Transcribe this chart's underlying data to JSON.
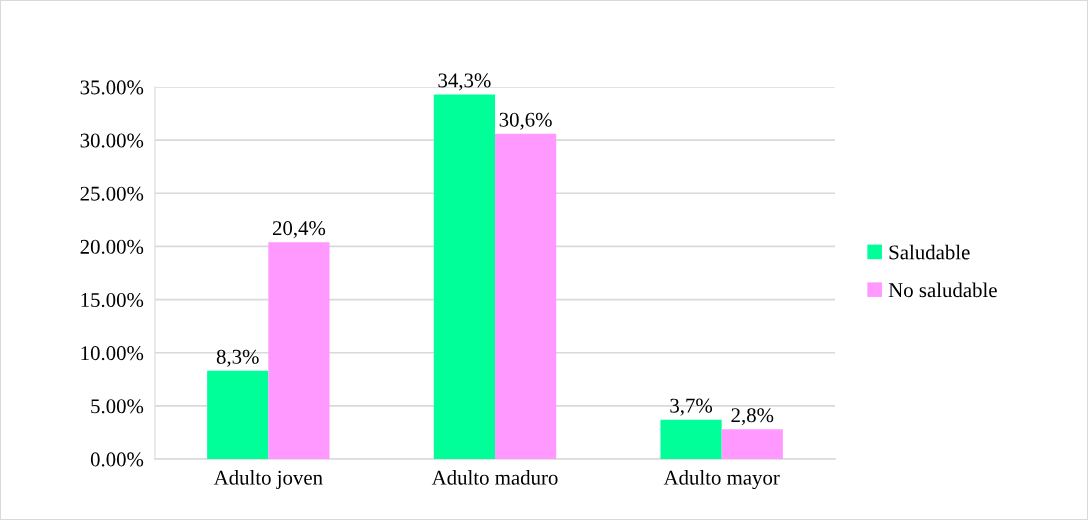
{
  "chart_data": {
    "type": "bar",
    "categories": [
      "Adulto joven",
      "Adulto maduro",
      "Adulto mayor"
    ],
    "series": [
      {
        "name": "Saludable",
        "color": "#00ff99",
        "values": [
          8.3,
          34.3,
          3.7
        ],
        "value_labels": [
          "8,3%",
          "34,3%",
          "3,7%"
        ]
      },
      {
        "name": "No saludable",
        "color": "#ff99ff",
        "values": [
          20.4,
          30.6,
          2.8
        ],
        "value_labels": [
          "20,4%",
          "30,6%",
          "2,8%"
        ]
      }
    ],
    "ylim": [
      0,
      35
    ],
    "yticks": [
      {
        "value": 0,
        "label": "0.00%"
      },
      {
        "value": 5,
        "label": "5.00%"
      },
      {
        "value": 10,
        "label": "10.00%"
      },
      {
        "value": 15,
        "label": "15.00%"
      },
      {
        "value": 20,
        "label": "20.00%"
      },
      {
        "value": 25,
        "label": "25.00%"
      },
      {
        "value": 30,
        "label": "30.00%"
      },
      {
        "value": 35,
        "label": "35.00%"
      }
    ],
    "grid": "y",
    "legend": "right"
  }
}
